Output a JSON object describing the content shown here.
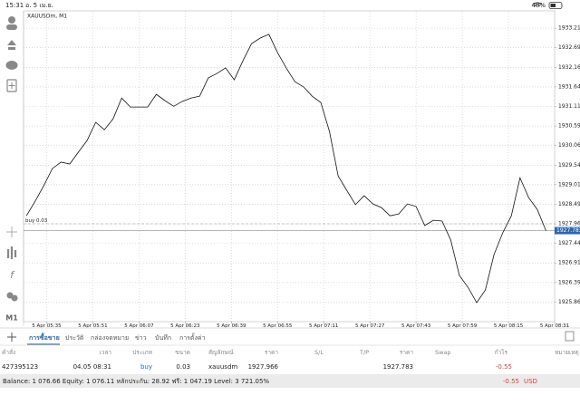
{
  "status_bar": {
    "time": "15:31",
    "date": "อ. 5 เม.ย.",
    "battery": "48%"
  },
  "chart_data": {
    "type": "line",
    "title": "XAUUSDm, M1",
    "color": "#111111",
    "grid": true,
    "x": [
      "5 Apr 05:28",
      "5 Apr 05:31",
      "5 Apr 05:34",
      "5 Apr 05:37",
      "5 Apr 05:40",
      "5 Apr 05:43",
      "5 Apr 05:46",
      "5 Apr 05:49",
      "5 Apr 05:52",
      "5 Apr 05:55",
      "5 Apr 05:58",
      "5 Apr 06:01",
      "5 Apr 06:04",
      "5 Apr 06:07",
      "5 Apr 06:10",
      "5 Apr 06:13",
      "5 Apr 06:16",
      "5 Apr 06:19",
      "5 Apr 06:22",
      "5 Apr 06:25",
      "5 Apr 06:28",
      "5 Apr 06:31",
      "5 Apr 06:34",
      "5 Apr 06:37",
      "5 Apr 06:40",
      "5 Apr 06:43",
      "5 Apr 06:46",
      "5 Apr 06:49",
      "5 Apr 06:52",
      "5 Apr 06:55",
      "5 Apr 06:58",
      "5 Apr 07:01",
      "5 Apr 07:04",
      "5 Apr 07:07",
      "5 Apr 07:10",
      "5 Apr 07:13",
      "5 Apr 07:16",
      "5 Apr 07:19",
      "5 Apr 07:22",
      "5 Apr 07:25",
      "5 Apr 07:28",
      "5 Apr 07:31",
      "5 Apr 07:34",
      "5 Apr 07:37",
      "5 Apr 07:40",
      "5 Apr 07:43",
      "5 Apr 07:46",
      "5 Apr 07:49",
      "5 Apr 07:52",
      "5 Apr 07:55",
      "5 Apr 07:58",
      "5 Apr 08:01",
      "5 Apr 08:04",
      "5 Apr 08:07",
      "5 Apr 08:10",
      "5 Apr 08:13",
      "5 Apr 08:16",
      "5 Apr 08:19",
      "5 Apr 08:22",
      "5 Apr 08:25",
      "5 Apr 08:28"
    ],
    "values": [
      1928.18,
      1928.57,
      1928.99,
      1929.45,
      1929.62,
      1929.57,
      1929.89,
      1930.2,
      1930.69,
      1930.49,
      1930.78,
      1931.34,
      1931.1,
      1931.1,
      1931.1,
      1931.44,
      1931.27,
      1931.12,
      1931.25,
      1931.34,
      1931.39,
      1931.88,
      1932.0,
      1932.15,
      1931.83,
      1932.34,
      1932.8,
      1932.95,
      1933.05,
      1932.56,
      1932.15,
      1931.78,
      1931.64,
      1931.39,
      1931.22,
      1930.44,
      1929.25,
      1928.86,
      1928.48,
      1928.72,
      1928.5,
      1928.4,
      1928.18,
      1928.23,
      1928.5,
      1928.43,
      1927.92,
      1928.06,
      1928.04,
      1927.53,
      1926.58,
      1926.26,
      1925.85,
      1926.19,
      1927.14,
      1927.72,
      1928.18,
      1929.2,
      1928.67,
      1928.35,
      1927.78
    ],
    "xlim": [
      "5 Apr 05:27",
      "5 Apr 08:31"
    ],
    "xticks": [
      "5 Apr 05:35",
      "5 Apr 05:51",
      "5 Apr 06:07",
      "5 Apr 06:23",
      "5 Apr 06:39",
      "5 Apr 06:55",
      "5 Apr 07:11",
      "5 Apr 07:27",
      "5 Apr 07:43",
      "5 Apr 07:59",
      "5 Apr 08:15",
      "5 Apr 08:31"
    ],
    "ylim": [
      1925.34,
      1933.68
    ],
    "yticks": [
      1933.215,
      {
        "value": 1932.69,
        "label": "1932.690"
      },
      1932.165,
      {
        "value": 1931.64,
        "label": "1931.640"
      },
      1931.115,
      {
        "value": 1930.59,
        "label": "1930.590"
      },
      1930.065,
      {
        "value": 1929.54,
        "label": "1929.540"
      },
      1929.015,
      {
        "value": 1928.49,
        "label": "1928.490"
      },
      1927.965,
      {
        "value": 1927.44,
        "label": "1927.440"
      },
      1926.915,
      {
        "value": 1926.39,
        "label": "1926.390"
      },
      1925.865
    ],
    "current_price": 1927.783,
    "order_line": {
      "label": "buy 0.03",
      "value": 1927.966
    }
  },
  "toolbar": {
    "timeframe": "M1"
  },
  "tabs": [
    "การซื้อขาย",
    "ประวัติ",
    "กล่องจดหมาย",
    "ข่าว",
    "บันทึก",
    "การตั้งค่า"
  ],
  "table": {
    "columns": [
      "คำสั่ง",
      "เวลา",
      "ประเภท",
      "ขนาด",
      "สัญลักษณ์",
      "ราคา",
      "S/L",
      "T/P",
      "ราคา",
      "Swap",
      "กำไร",
      "หมายเหตุ"
    ],
    "row": {
      "order": "427395123",
      "time": "04.05 08:31",
      "type": "buy",
      "size": "0.03",
      "symbol": "xauusdm",
      "price": "1927.966",
      "current_price": "1927.783",
      "profit": "-0.55"
    }
  },
  "footer": {
    "summary": "Balance: 1 076.66 Equity: 1 076.11 หลักประกัน: 28.92 ฟรี: 1 047.19 Level: 3 721.05%",
    "total": "-0.55",
    "currency": "USD"
  }
}
